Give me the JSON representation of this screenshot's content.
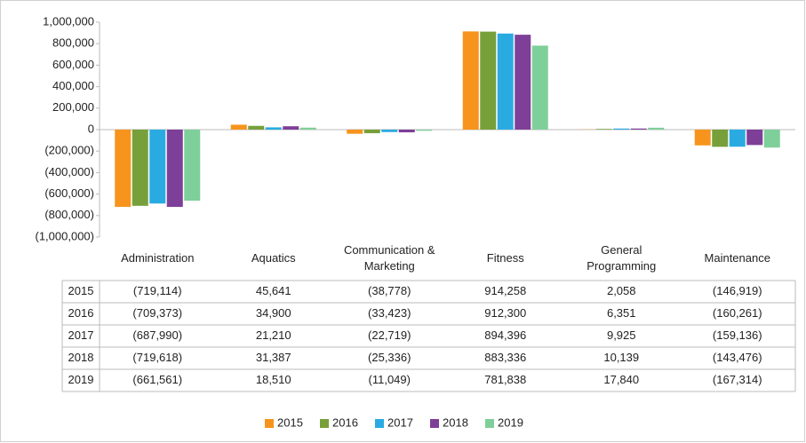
{
  "chart_data": {
    "type": "bar",
    "categories": [
      "Administration",
      "Aquatics",
      "Communication & Marketing",
      "Fitness",
      "General Programming",
      "Maintenance"
    ],
    "series": [
      {
        "name": "2015",
        "color": "#f7941d",
        "values": [
          -719114,
          45641,
          -38778,
          914258,
          2058,
          -146919
        ],
        "value_labels": [
          "(719,114)",
          "45,641",
          "(38,778)",
          "914,258",
          "2,058",
          "(146,919)"
        ]
      },
      {
        "name": "2016",
        "color": "#77a03a",
        "values": [
          -709373,
          34900,
          -33423,
          912300,
          6351,
          -160261
        ],
        "value_labels": [
          "(709,373)",
          "34,900",
          "(33,423)",
          "912,300",
          "6,351",
          "(160,261)"
        ]
      },
      {
        "name": "2017",
        "color": "#29abe2",
        "values": [
          -687990,
          21210,
          -22719,
          894396,
          9925,
          -159136
        ],
        "value_labels": [
          "(687,990)",
          "21,210",
          "(22,719)",
          "894,396",
          "9,925",
          "(159,136)"
        ]
      },
      {
        "name": "2018",
        "color": "#7e3f98",
        "values": [
          -719618,
          31387,
          -25336,
          883336,
          10139,
          -143476
        ],
        "value_labels": [
          "(719,618)",
          "31,387",
          "(25,336)",
          "883,336",
          "10,139",
          "(143,476)"
        ]
      },
      {
        "name": "2019",
        "color": "#7fcf9a",
        "values": [
          -661561,
          18510,
          -11049,
          781838,
          17840,
          -167314
        ],
        "value_labels": [
          "(661,561)",
          "18,510",
          "(11,049)",
          "781,838",
          "17,840",
          "(167,314)"
        ]
      }
    ],
    "ylim": [
      -1000000,
      1000000
    ],
    "yticks": [
      {
        "value": -1000000,
        "label": "(1,000,000)"
      },
      {
        "value": -800000,
        "label": "(800,000)"
      },
      {
        "value": -600000,
        "label": "(600,000)"
      },
      {
        "value": -400000,
        "label": "(400,000)"
      },
      {
        "value": -200000,
        "label": "(200,000)"
      },
      0,
      {
        "value": 200000,
        "label": "200,000"
      },
      {
        "value": 400000,
        "label": "400,000"
      },
      {
        "value": 600000,
        "label": "600,000"
      },
      {
        "value": 800000,
        "label": "800,000"
      },
      {
        "value": 1000000,
        "label": "1,000,000"
      }
    ],
    "grid": false,
    "legend": "bottom",
    "data_table": true
  }
}
